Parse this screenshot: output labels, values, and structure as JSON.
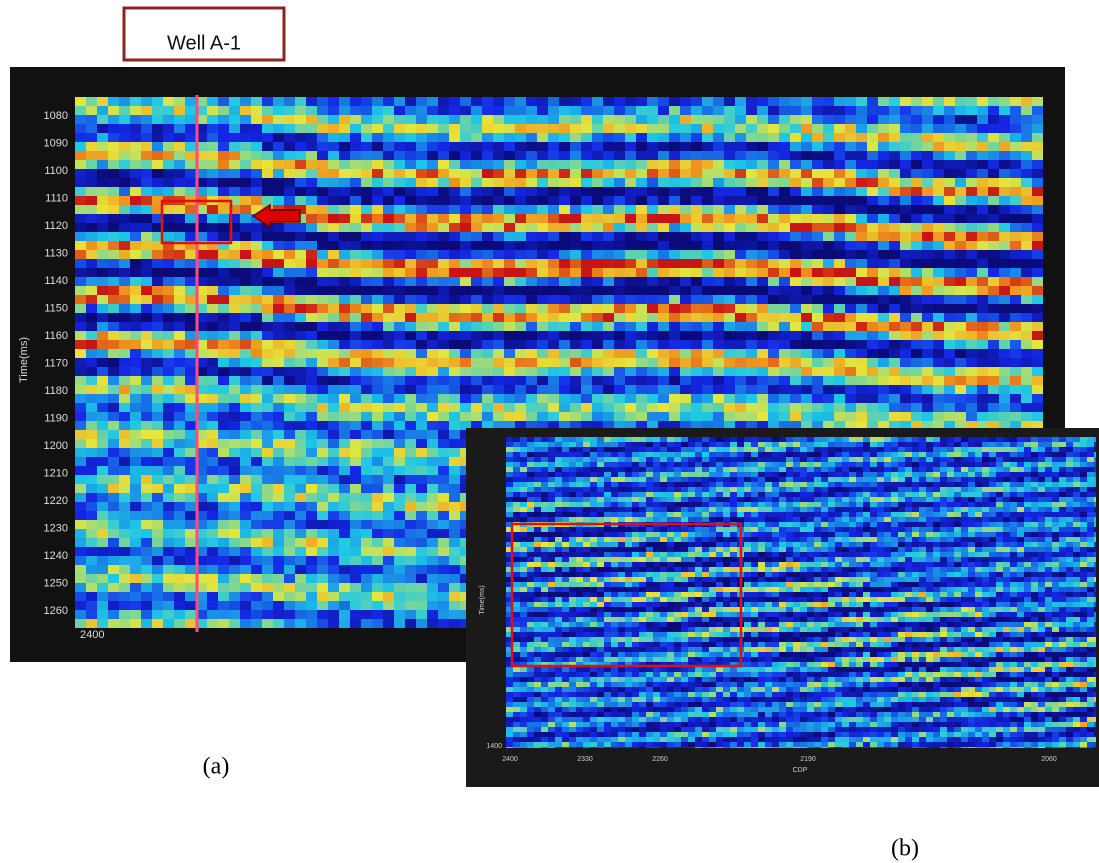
{
  "header": {
    "label": "Well A-1"
  },
  "panel_a": {
    "caption": "(a)",
    "y_label": "Time(ms)",
    "x_label": "2400",
    "yticks": [
      1080,
      1090,
      1100,
      1110,
      1120,
      1130,
      1140,
      1150,
      1160,
      1170,
      1180,
      1190,
      1200,
      1210,
      1220,
      1230,
      1240,
      1250,
      1260
    ]
  },
  "panel_b": {
    "caption": "(b)",
    "y_label": "Time(ms)",
    "y_bottom": "1400",
    "x_label": "CDP",
    "xticks": [
      "2400",
      "2330",
      "2260",
      "2190",
      "2060"
    ]
  }
}
